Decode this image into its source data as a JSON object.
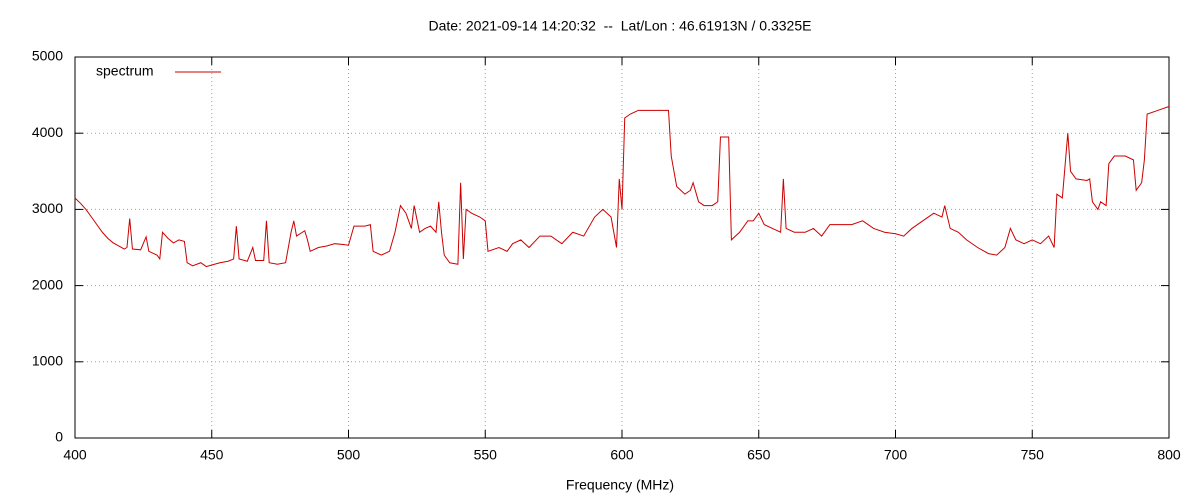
{
  "chart_data": {
    "type": "line",
    "title": "Date: 2021-09-14 14:20:32  --  Lat/Lon : 46.61913N / 0.3325E",
    "x_label": "Frequency (MHz)",
    "xlim": [
      400,
      800
    ],
    "xticks": [
      400,
      450,
      500,
      550,
      600,
      650,
      700,
      750,
      800
    ],
    "ylim": [
      0,
      5000
    ],
    "yticks": [
      0,
      1000,
      2000,
      3000,
      4000,
      5000
    ],
    "grid": true,
    "legend": "top-left",
    "x": [
      400,
      402,
      404,
      406,
      408,
      410,
      412,
      414,
      416,
      418,
      419,
      420,
      421,
      424,
      426,
      427,
      430,
      431,
      432,
      434,
      436,
      438,
      440,
      441,
      443,
      446,
      448,
      450,
      453,
      456,
      458,
      459,
      460,
      463,
      465,
      466,
      469,
      470,
      471,
      474,
      477,
      479,
      480,
      481,
      484,
      485,
      486,
      489,
      492,
      495,
      498,
      500,
      502,
      506,
      508,
      509,
      512,
      515,
      517,
      519,
      521,
      523,
      524,
      526,
      528,
      530,
      532,
      533,
      534,
      535,
      537,
      540,
      541,
      542,
      543,
      545,
      548,
      550,
      551,
      555,
      558,
      560,
      563,
      566,
      570,
      574,
      578,
      582,
      586,
      590,
      593,
      596,
      598,
      599,
      600,
      601,
      603,
      606,
      610,
      614,
      617,
      618,
      620,
      623,
      625,
      626,
      628,
      630,
      633,
      635,
      636,
      639,
      640,
      643,
      646,
      648,
      650,
      652,
      655,
      658,
      659,
      660,
      663,
      667,
      670,
      673,
      676,
      680,
      684,
      688,
      692,
      696,
      700,
      703,
      706,
      710,
      714,
      717,
      718,
      720,
      723,
      726,
      730,
      734,
      737,
      740,
      742,
      744,
      747,
      750,
      753,
      756,
      758,
      759,
      761,
      763,
      764,
      766,
      770,
      771,
      772,
      774,
      775,
      777,
      778,
      780,
      784,
      787,
      788,
      790,
      791,
      792,
      796,
      800
    ],
    "series": [
      {
        "name": "spectrum",
        "color": "#cc0000",
        "values": [
          3150,
          3080,
          3000,
          2900,
          2800,
          2700,
          2620,
          2560,
          2520,
          2480,
          2500,
          2880,
          2480,
          2470,
          2640,
          2450,
          2400,
          2350,
          2700,
          2620,
          2560,
          2600,
          2580,
          2300,
          2260,
          2300,
          2250,
          2270,
          2300,
          2320,
          2350,
          2780,
          2350,
          2320,
          2500,
          2330,
          2330,
          2850,
          2300,
          2280,
          2300,
          2700,
          2850,
          2650,
          2720,
          2600,
          2450,
          2500,
          2520,
          2550,
          2540,
          2530,
          2780,
          2780,
          2800,
          2450,
          2400,
          2450,
          2700,
          3050,
          2950,
          2750,
          3050,
          2700,
          2750,
          2780,
          2700,
          3100,
          2700,
          2400,
          2300,
          2280,
          3350,
          2350,
          3000,
          2950,
          2900,
          2850,
          2450,
          2500,
          2450,
          2550,
          2600,
          2500,
          2650,
          2650,
          2550,
          2700,
          2650,
          2900,
          3000,
          2900,
          2500,
          3400,
          3000,
          4200,
          4250,
          4300,
          4300,
          4300,
          4300,
          3700,
          3300,
          3200,
          3250,
          3350,
          3100,
          3050,
          3050,
          3100,
          3950,
          3950,
          2600,
          2700,
          2850,
          2850,
          2950,
          2800,
          2750,
          2700,
          3400,
          2750,
          2700,
          2700,
          2750,
          2650,
          2800,
          2800,
          2800,
          2850,
          2750,
          2700,
          2680,
          2650,
          2750,
          2850,
          2950,
          2900,
          3050,
          2750,
          2700,
          2600,
          2500,
          2420,
          2400,
          2500,
          2750,
          2600,
          2550,
          2600,
          2550,
          2650,
          2500,
          3200,
          3150,
          4000,
          3500,
          3400,
          3380,
          3400,
          3100,
          3000,
          3100,
          3050,
          3600,
          3700,
          3700,
          3650,
          3250,
          3350,
          3650,
          4250,
          4300,
          4350
        ]
      }
    ]
  }
}
